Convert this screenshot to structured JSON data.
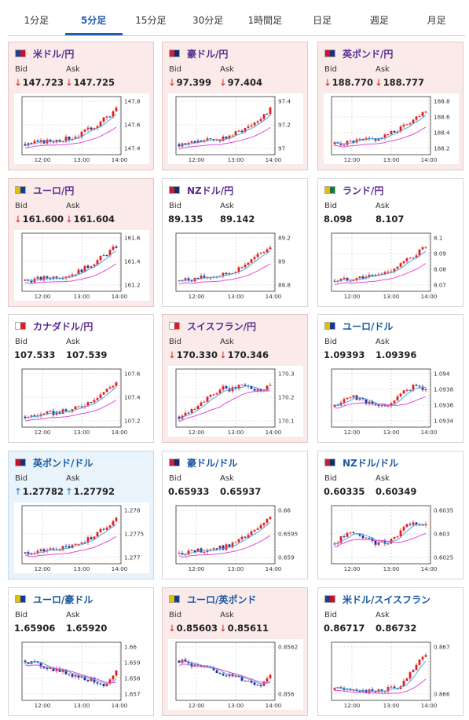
{
  "tabs": [
    "1分足",
    "5分足",
    "15分足",
    "30分足",
    "1時間足",
    "日足",
    "週足",
    "月足"
  ],
  "active_tab": 1,
  "labels": {
    "bid": "Bid",
    "ask": "Ask"
  },
  "time_labels": [
    "12:00",
    "13:00",
    "14:00"
  ],
  "flag_colors": {
    "us": [
      "#c8102e",
      "#1f3f8a"
    ],
    "au": [
      "#102a6e",
      "#cc2233"
    ],
    "gb": [
      "#1a2f7a",
      "#d0102a"
    ],
    "eu": [
      "#123a96",
      "#e0c000"
    ],
    "nz": [
      "#112d70",
      "#c81e2c"
    ],
    "za": [
      "#0f7a3a",
      "#f2b800"
    ],
    "ca": [
      "#d81e2a",
      "#ffffff"
    ],
    "ch": [
      "#d91f26",
      "#ffffff"
    ]
  },
  "cards": [
    {
      "name": "米ドル/円",
      "flag": "us",
      "bid": "147.723",
      "ask": "147.725",
      "dir": "down",
      "bg": "down",
      "yticks": [
        "147.8",
        "147.6",
        "147.4"
      ],
      "pattern": "rise"
    },
    {
      "name": "豪ドル/円",
      "flag": "au",
      "bid": "97.399",
      "ask": "97.404",
      "dir": "down",
      "bg": "down",
      "yticks": [
        "97.4",
        "97.2",
        "97"
      ],
      "pattern": "rise"
    },
    {
      "name": "英ポンド/円",
      "flag": "gb",
      "bid": "188.770",
      "ask": "188.777",
      "dir": "down",
      "bg": "down",
      "yticks": [
        "188.8",
        "188.6",
        "188.4",
        "188.2"
      ],
      "pattern": "rise"
    },
    {
      "name": "ユーロ/円",
      "flag": "eu",
      "bid": "161.600",
      "ask": "161.604",
      "dir": "down",
      "bg": "down",
      "yticks": [
        "161.6",
        "161.4",
        "161.2"
      ],
      "pattern": "rise"
    },
    {
      "name": "NZドル/円",
      "flag": "nz",
      "bid": "89.135",
      "ask": "89.142",
      "dir": "none",
      "bg": "neutral",
      "yticks": [
        "89.2",
        "89",
        "88.8"
      ],
      "pattern": "rise"
    },
    {
      "name": "ランド/円",
      "flag": "za",
      "bid": "8.098",
      "ask": "8.107",
      "dir": "none",
      "bg": "neutral",
      "yticks": [
        "8.1",
        "8.09",
        "8.08",
        "8.07"
      ],
      "pattern": "rise"
    },
    {
      "name": "カナダドル/円",
      "flag": "ca",
      "bid": "107.533",
      "ask": "107.539",
      "dir": "none",
      "bg": "neutral",
      "yticks": [
        "107.6",
        "107.4",
        "107.2"
      ],
      "pattern": "rise"
    },
    {
      "name": "スイスフラン/円",
      "flag": "ch",
      "bid": "170.330",
      "ask": "170.346",
      "dir": "down",
      "bg": "down",
      "yticks": [
        "170.3",
        "170.2",
        "170.1"
      ],
      "pattern": "riseflat"
    },
    {
      "name": "ユーロ/ドル",
      "flag": "eu",
      "bid": "1.09393",
      "ask": "1.09396",
      "dir": "none",
      "bg": "neutral",
      "blue": true,
      "yticks": [
        "1.094",
        "1.0938",
        "1.0936",
        "1.0934"
      ],
      "pattern": "choppy"
    },
    {
      "name": "英ポンド/ドル",
      "flag": "gb",
      "bid": "1.27782",
      "ask": "1.27792",
      "dir": "up",
      "bg": "up",
      "blue": true,
      "yticks": [
        "1.278",
        "1.2775",
        "1.277"
      ],
      "pattern": "rise"
    },
    {
      "name": "豪ドル/ドル",
      "flag": "au",
      "bid": "0.65933",
      "ask": "0.65937",
      "dir": "none",
      "bg": "neutral",
      "blue": true,
      "yticks": [
        "0.66",
        "0.6595",
        "0.659"
      ],
      "pattern": "rise"
    },
    {
      "name": "NZドル/ドル",
      "flag": "nz",
      "bid": "0.60335",
      "ask": "0.60349",
      "dir": "none",
      "bg": "neutral",
      "blue": true,
      "yticks": [
        "0.6035",
        "0.603",
        "0.6025"
      ],
      "pattern": "choppy"
    },
    {
      "name": "ユーロ/豪ドル",
      "flag": "eu",
      "bid": "1.65906",
      "ask": "1.65920",
      "dir": "none",
      "bg": "neutral",
      "blue": true,
      "yticks": [
        "1.66",
        "1.659",
        "1.658",
        "1.657"
      ],
      "pattern": "fall"
    },
    {
      "name": "ユーロ/英ポンド",
      "flag": "eu",
      "bid": "0.85603",
      "ask": "0.85611",
      "dir": "down",
      "bg": "down",
      "blue": true,
      "yticks": [
        "0.8562",
        "0.856"
      ],
      "pattern": "fall"
    },
    {
      "name": "米ドル/スイスフラン",
      "flag": "us",
      "bid": "0.86717",
      "ask": "0.86732",
      "dir": "none",
      "bg": "neutral",
      "blue": true,
      "yticks": [
        "0.867",
        "0.866"
      ],
      "pattern": "lateup"
    }
  ]
}
